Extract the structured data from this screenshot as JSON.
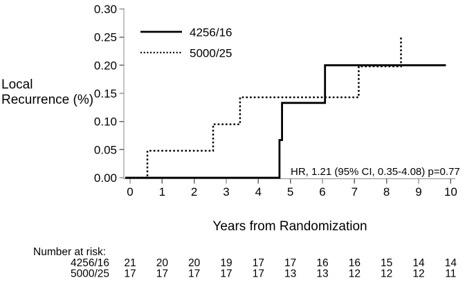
{
  "figure": {
    "ylabel_line1": "Local",
    "ylabel_line2": "Recurrence (%)",
    "xlabel": "Years from Randomization",
    "annotation": "HR, 1.21 (95% CI, 0.35-4.08) p=0.77"
  },
  "chart_data": {
    "type": "line",
    "subtype": "kaplan-meier-step",
    "title": "",
    "xlabel": "Years from Randomization",
    "ylabel": "Local Recurrence (%)",
    "xlim": [
      0,
      10
    ],
    "ylim": [
      0,
      0.3
    ],
    "x_ticks": [
      0,
      1,
      2,
      3,
      4,
      5,
      6,
      7,
      8,
      9,
      10
    ],
    "y_ticks": [
      0,
      0.05,
      0.1,
      0.15,
      0.2,
      0.25,
      0.3
    ],
    "grid": false,
    "legend_position": "top-left-inside",
    "annotation": "HR, 1.21 (95% CI, 0.35-4.08) p=0.77",
    "series": [
      {
        "name": "4256/16",
        "line_style": "solid",
        "color": "#000000",
        "step_points": [
          [
            0,
            0
          ],
          [
            4.66,
            0
          ],
          [
            4.66,
            0.067
          ],
          [
            4.74,
            0.067
          ],
          [
            4.74,
            0.133
          ],
          [
            6.08,
            0.133
          ],
          [
            6.08,
            0.2
          ],
          [
            9.85,
            0.2
          ]
        ]
      },
      {
        "name": "5000/25",
        "line_style": "dotted",
        "color": "#000000",
        "step_points": [
          [
            0,
            0
          ],
          [
            0.54,
            0
          ],
          [
            0.54,
            0.048
          ],
          [
            2.59,
            0.048
          ],
          [
            2.59,
            0.095
          ],
          [
            3.43,
            0.095
          ],
          [
            3.43,
            0.143
          ],
          [
            7.13,
            0.143
          ],
          [
            7.13,
            0.198
          ],
          [
            8.45,
            0.198
          ],
          [
            8.45,
            0.25
          ]
        ]
      }
    ]
  },
  "risk_table": {
    "title": "Number at risk:",
    "rows": [
      {
        "label": "4256/16",
        "values": [
          21,
          20,
          20,
          19,
          17,
          17,
          16,
          16,
          15,
          14,
          14
        ]
      },
      {
        "label": "5000/25",
        "values": [
          17,
          17,
          17,
          17,
          17,
          13,
          13,
          12,
          12,
          12,
          11
        ]
      }
    ]
  },
  "colors": {
    "line": "#000000",
    "axis": "#8a8a8a",
    "tick": "#666666",
    "background": "#ffffff"
  }
}
